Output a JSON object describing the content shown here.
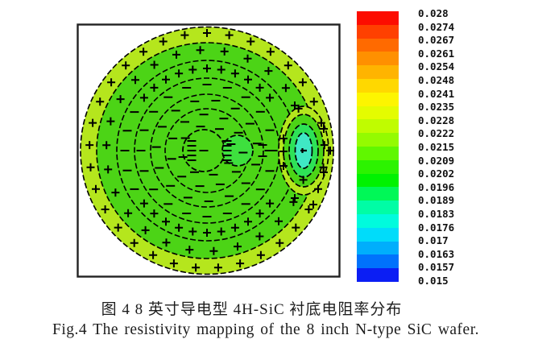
{
  "figure": {
    "type_note": "scientific contour map figure with vertical rainbow colorbar"
  },
  "chart_data": {
    "type": "heatmap",
    "subtype": "wafer-resistivity-contour-map",
    "caption_zh": "图 4 8 英寸导电型 4H-SiC 衬底电阻率分布",
    "caption_en": "Fig.4 The resistivity mapping of the 8 inch N-type SiC wafer.",
    "colorbar": {
      "orientation": "vertical",
      "position": "right",
      "max": 0.028,
      "min": 0.015,
      "step": 0.00065,
      "colormap": "rainbow (red = high, blue = low)",
      "tick_labels": [
        "0.028",
        "0.0274",
        "0.0267",
        "0.0261",
        "0.0254",
        "0.0248",
        "0.0241",
        "0.0235",
        "0.0228",
        "0.0222",
        "0.0215",
        "0.0209",
        "0.0202",
        "0.0196",
        "0.0189",
        "0.0183",
        "0.0176",
        "0.017",
        "0.0163",
        "0.0157",
        "0.015"
      ],
      "band_colors": [
        "#fc0d00",
        "#ff4000",
        "#ff6a00",
        "#ff9000",
        "#ffb400",
        "#ffd800",
        "#fdf500",
        "#e4fc00",
        "#c0fc00",
        "#94fb00",
        "#60f700",
        "#2cf300",
        "#00f200",
        "#00f857",
        "#00fda5",
        "#00fbdd",
        "#00dcfa",
        "#00aefc",
        "#0072fc",
        "#0b1ef4"
      ]
    },
    "colors": {
      "frame": "#222222",
      "edge_ring": "#b5e61d",
      "body": "#4cd416",
      "lobe": "#3ee03e",
      "oval_mid": "#2ee257",
      "oval_core": "#3fe8c4",
      "marker": "#000000"
    },
    "wafer": {
      "shape": "circular 8-inch wafer inscribed in square frame",
      "regions": [
        {
          "name": "edge-ring",
          "approx_resistivity": 0.0235,
          "color_hex": "#b5e61d",
          "markers": "+"
        },
        {
          "name": "outer-annulus",
          "approx_resistivity": 0.0222,
          "color_hex": "#4cd416",
          "markers": "+"
        },
        {
          "name": "interior",
          "approx_resistivity": 0.0215,
          "color_hex": "#4cd416",
          "markers": "-"
        },
        {
          "name": "center-twin-spot",
          "approx_resistivity": 0.0209,
          "color_hex": "#3ee03e",
          "markers": "-"
        },
        {
          "name": "right-edge-low-spot",
          "approx_resistivity": 0.0189,
          "color_hex": "#3fe8c4",
          "markers": "+"
        }
      ]
    },
    "marker_rings": [
      {
        "symbol": "+",
        "r": 146,
        "n": 33,
        "a0": -90,
        "a1": 270
      },
      {
        "symbol": "+",
        "r": 125,
        "n": 26,
        "a0": -80,
        "a1": 280,
        "skip": [
          -16,
          16
        ]
      },
      {
        "symbol": "+",
        "r": 102,
        "n": 11,
        "a0": -140,
        "a1": -40,
        "arc": true
      },
      {
        "symbol": "+",
        "r": 102,
        "n": 11,
        "a0": 40,
        "a1": 140,
        "arc": true
      },
      {
        "symbol": "-",
        "r": 102,
        "n": 5,
        "a0": 152,
        "a1": 208,
        "arc": true
      },
      {
        "symbol": "-",
        "r": 82,
        "n": 20,
        "a0": -90,
        "a1": 270
      },
      {
        "symbol": "-",
        "r": 63,
        "n": 15,
        "a0": -80,
        "a1": 280
      },
      {
        "symbol": "-",
        "r": 45,
        "n": 11,
        "a0": -95,
        "a1": 265
      },
      {
        "symbol": "-",
        "r": 31,
        "n": 8,
        "a0": -60,
        "a1": 300
      }
    ],
    "extra_markers": {
      "plus": [
        [
          258,
          144
        ],
        [
          258,
          160
        ],
        [
          258,
          178
        ],
        [
          272,
          103
        ],
        [
          272,
          218
        ],
        [
          308,
          132
        ],
        [
          308,
          186
        ],
        [
          295,
          226
        ],
        [
          316,
          159
        ]
      ],
      "minus": [
        [
          159,
          159
        ],
        [
          144,
          147
        ],
        [
          144,
          153
        ],
        [
          144,
          159
        ],
        [
          144,
          165
        ],
        [
          144,
          171
        ],
        [
          188,
          147
        ],
        [
          188,
          153
        ],
        [
          188,
          159
        ],
        [
          188,
          165
        ],
        [
          188,
          171
        ],
        [
          232,
          152
        ],
        [
          232,
          166
        ],
        [
          240,
          159
        ]
      ]
    }
  }
}
